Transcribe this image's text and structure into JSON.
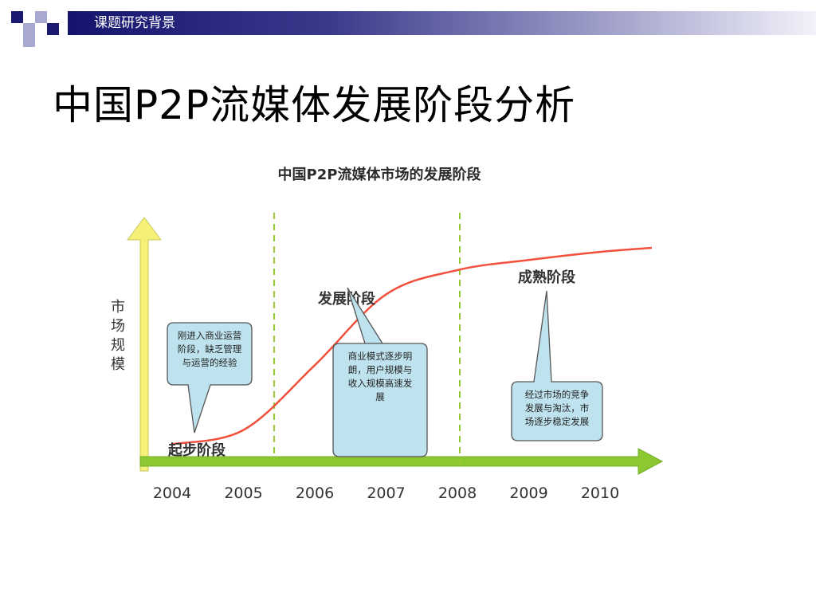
{
  "header": {
    "section_label": "课题研究背景"
  },
  "slide": {
    "title": "中国P2P流媒体发展阶段分析"
  },
  "figure": {
    "title": "中国P2P流媒体市场的发展阶段",
    "ylabel": "市场规模",
    "stages": [
      "起步阶段",
      "发展阶段",
      "成熟阶段"
    ],
    "callouts": [
      {
        "lines": [
          "刚进入商业运营",
          "阶段，缺乏管理",
          "与运营的经验"
        ]
      },
      {
        "lines": [
          "商业模式逐步明",
          "朗，用户规模与",
          "收入规模高速发",
          "展"
        ]
      },
      {
        "lines": [
          "经过市场的竞争",
          "发展与淘汰，市",
          "场逐步稳定发展"
        ]
      }
    ],
    "colors": {
      "curve": "#f0503c",
      "divider": "#96c832",
      "x_arrow": "#8cc832",
      "y_arrow": "#f5f078",
      "callout_fill": "#bfe3ee"
    }
  },
  "chart_data": {
    "type": "line",
    "title": "中国P2P流媒体市场的发展阶段",
    "xlabel": "",
    "ylabel": "市场规模",
    "categories": [
      "2004",
      "2005",
      "2006",
      "2007",
      "2008",
      "2009",
      "2010"
    ],
    "stage_boundaries": [
      "2005",
      "2008"
    ],
    "series": [
      {
        "values": [
          0.03,
          0.1,
          0.42,
          0.77,
          0.89,
          0.94,
          0.98
        ]
      }
    ]
  }
}
